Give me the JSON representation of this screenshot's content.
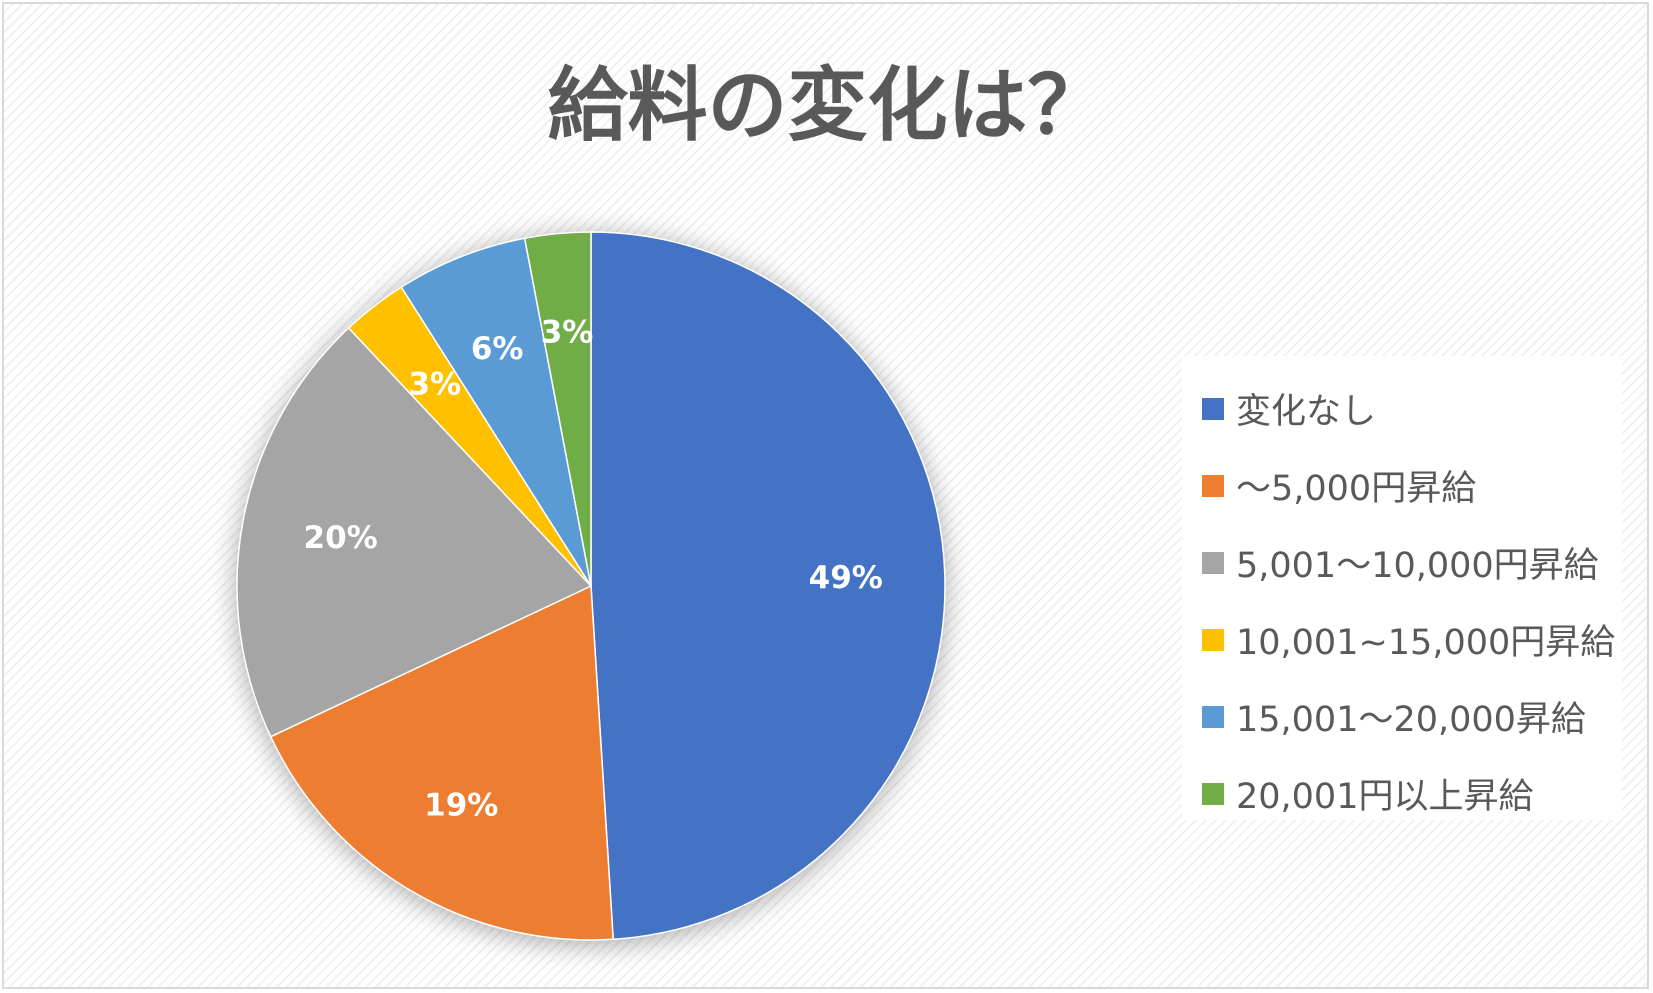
{
  "chart_data": {
    "type": "pie",
    "title": "給料の変化は？",
    "slices": [
      {
        "name": "変化なし",
        "value": 49,
        "label": "49%",
        "color": "#4472C4"
      },
      {
        "name": "～5,000円昇給",
        "value": 19,
        "label": "19%",
        "color": "#ED7D31"
      },
      {
        "name": "5,001～10,000円昇給",
        "value": 20,
        "label": "20%",
        "color": "#A5A5A5"
      },
      {
        "name": "10,001~15,000円昇給",
        "value": 3,
        "label": "3%",
        "color": "#FFC000"
      },
      {
        "name": "15,001～20,000昇給",
        "value": 6,
        "label": "6%",
        "color": "#5B9BD5"
      },
      {
        "name": "20,001円以上昇給",
        "value": 3,
        "label": "3%",
        "color": "#70AD47"
      }
    ],
    "start_angle_deg": 0,
    "direction": "clockwise",
    "legend_position": "right"
  }
}
